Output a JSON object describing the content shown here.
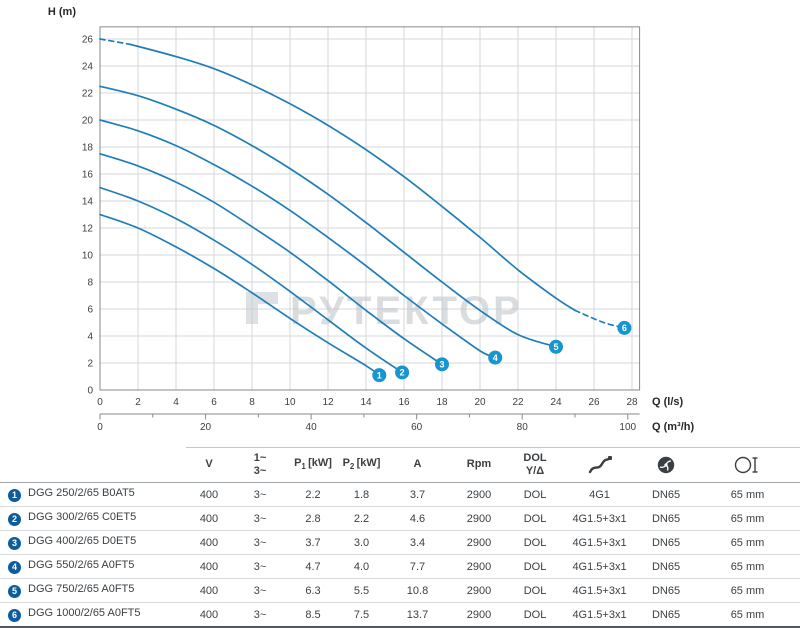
{
  "chart_data": {
    "type": "line",
    "title": "",
    "ylabel": "H (m)",
    "xlabel_primary": "Q (l/s)",
    "xlabel_secondary": "Q (m³/h)",
    "watermark": "РУТЕКТОР",
    "xlim": [
      0,
      28.4
    ],
    "ylim": [
      0,
      26.9
    ],
    "grid": true,
    "legend": "numbered markers 1-6 matching table rows",
    "y_ticks": [
      0,
      2,
      4,
      6,
      8,
      10,
      12,
      14,
      16,
      18,
      20,
      22,
      24,
      26
    ],
    "x_ticks_ls": [
      0,
      2,
      4,
      6,
      8,
      10,
      12,
      14,
      16,
      18,
      20,
      22,
      24,
      26,
      28
    ],
    "x_ticks_m3h": [
      0,
      20,
      40,
      60,
      80,
      100
    ],
    "m3h_per_ls": 3.6,
    "curve_color": "#1f7db8",
    "marker_color": "#1795cd",
    "series": [
      {
        "id": "1",
        "model": "DGG 250/2/65 B0AT5",
        "marker": [
          14.7,
          1.1
        ],
        "segments": [
          {
            "dashed": false,
            "pts": [
              [
                0,
                13
              ],
              [
                2,
                12
              ],
              [
                4,
                10.6
              ],
              [
                6,
                9
              ],
              [
                8,
                7.2
              ],
              [
                10,
                5.3
              ],
              [
                12,
                3.5
              ],
              [
                14,
                1.8
              ],
              [
                14.7,
                1.1
              ]
            ]
          }
        ]
      },
      {
        "id": "2",
        "model": "DGG 300/2/65 C0ET5",
        "marker": [
          15.9,
          1.3
        ],
        "segments": [
          {
            "dashed": false,
            "pts": [
              [
                0,
                15
              ],
              [
                2,
                14
              ],
              [
                4,
                12.7
              ],
              [
                6,
                11.1
              ],
              [
                8,
                9.3
              ],
              [
                10,
                7.3
              ],
              [
                12,
                5.2
              ],
              [
                14,
                3.1
              ],
              [
                15.9,
                1.3
              ]
            ]
          }
        ]
      },
      {
        "id": "3",
        "model": "DGG 400/2/65 D0ET5",
        "marker": [
          18,
          1.9
        ],
        "segments": [
          {
            "dashed": false,
            "pts": [
              [
                0,
                17.5
              ],
              [
                2,
                16.6
              ],
              [
                4,
                15.4
              ],
              [
                6,
                13.9
              ],
              [
                8,
                12.1
              ],
              [
                10,
                10.2
              ],
              [
                12,
                8.1
              ],
              [
                14,
                5.9
              ],
              [
                16,
                3.8
              ],
              [
                18,
                1.9
              ]
            ]
          }
        ]
      },
      {
        "id": "4",
        "model": "DGG 550/2/65 A0FT5",
        "marker": [
          20.8,
          2.4
        ],
        "segments": [
          {
            "dashed": false,
            "pts": [
              [
                0,
                20
              ],
              [
                2,
                19.2
              ],
              [
                4,
                18.1
              ],
              [
                6,
                16.7
              ],
              [
                8,
                15.1
              ],
              [
                10,
                13.3
              ],
              [
                12,
                11.3
              ],
              [
                14,
                9.2
              ],
              [
                16,
                7
              ],
              [
                18,
                4.9
              ],
              [
                20,
                2.9
              ],
              [
                20.8,
                2.4
              ]
            ]
          }
        ]
      },
      {
        "id": "5",
        "model": "DGG 750/2/65 A0FT5",
        "marker": [
          24,
          3.2
        ],
        "segments": [
          {
            "dashed": false,
            "pts": [
              [
                0,
                22.5
              ],
              [
                2,
                21.8
              ],
              [
                4,
                20.8
              ],
              [
                6,
                19.6
              ],
              [
                8,
                18.1
              ],
              [
                10,
                16.4
              ],
              [
                12,
                14.5
              ],
              [
                14,
                12.4
              ],
              [
                16,
                10.2
              ],
              [
                18,
                8
              ],
              [
                20,
                5.9
              ],
              [
                22,
                4.1
              ],
              [
                24,
                3.2
              ]
            ]
          }
        ]
      },
      {
        "id": "6",
        "model": "DGG 1000/2/65 A0FT5",
        "marker": [
          27.6,
          4.6
        ],
        "segments": [
          {
            "dashed": true,
            "pts": [
              [
                0,
                26
              ],
              [
                1.6,
                25.6
              ]
            ]
          },
          {
            "dashed": false,
            "pts": [
              [
                1.6,
                25.6
              ],
              [
                4,
                24.7
              ],
              [
                6,
                23.8
              ],
              [
                8,
                22.6
              ],
              [
                10,
                21.2
              ],
              [
                12,
                19.6
              ],
              [
                14,
                17.8
              ],
              [
                16,
                15.8
              ],
              [
                18,
                13.6
              ],
              [
                20,
                11.3
              ],
              [
                22,
                8.9
              ],
              [
                24,
                6.8
              ],
              [
                25,
                5.9
              ]
            ]
          },
          {
            "dashed": true,
            "pts": [
              [
                25,
                5.9
              ],
              [
                26.5,
                5
              ],
              [
                27.6,
                4.6
              ]
            ]
          }
        ]
      }
    ]
  },
  "table": {
    "headers": {
      "v": "V",
      "phase_top": "1~",
      "phase_bottom": "3~",
      "p1": "P",
      "p1_sub": "1",
      "p1_unit": "[kW]",
      "p2": "P",
      "p2_sub": "2",
      "p2_unit": "[kW]",
      "a": "A",
      "rpm": "Rpm",
      "dol_top": "DOL",
      "dol_bottom": "Y/Δ",
      "cable_icon": "cable-icon",
      "impeller_icon": "impeller-icon",
      "passage_icon": "free-passage-icon"
    },
    "rows": [
      {
        "num": "1",
        "model": "DGG 250/2/65 B0AT5",
        "v": "400",
        "phase": "3~",
        "p1": "2.2",
        "p2": "1.8",
        "a": "3.7",
        "rpm": "2900",
        "start": "DOL",
        "cable": "4G1",
        "dn": "DN65",
        "passage": "65 mm"
      },
      {
        "num": "2",
        "model": "DGG 300/2/65 C0ET5",
        "v": "400",
        "phase": "3~",
        "p1": "2.8",
        "p2": "2.2",
        "a": "4.6",
        "rpm": "2900",
        "start": "DOL",
        "cable": "4G1.5+3x1",
        "dn": "DN65",
        "passage": "65 mm"
      },
      {
        "num": "3",
        "model": "DGG 400/2/65 D0ET5",
        "v": "400",
        "phase": "3~",
        "p1": "3.7",
        "p2": "3.0",
        "a": "3.4",
        "rpm": "2900",
        "start": "DOL",
        "cable": "4G1.5+3x1",
        "dn": "DN65",
        "passage": "65 mm"
      },
      {
        "num": "4",
        "model": "DGG 550/2/65 A0FT5",
        "v": "400",
        "phase": "3~",
        "p1": "4.7",
        "p2": "4.0",
        "a": "7.7",
        "rpm": "2900",
        "start": "DOL",
        "cable": "4G1.5+3x1",
        "dn": "DN65",
        "passage": "65 mm"
      },
      {
        "num": "5",
        "model": "DGG 750/2/65 A0FT5",
        "v": "400",
        "phase": "3~",
        "p1": "6.3",
        "p2": "5.5",
        "a": "10.8",
        "rpm": "2900",
        "start": "DOL",
        "cable": "4G1.5+3x1",
        "dn": "DN65",
        "passage": "65 mm"
      },
      {
        "num": "6",
        "model": "DGG 1000/2/65 A0FT5",
        "v": "400",
        "phase": "3~",
        "p1": "8.5",
        "p2": "7.5",
        "a": "13.7",
        "rpm": "2900",
        "start": "DOL",
        "cable": "4G1.5+3x1",
        "dn": "DN65",
        "passage": "65 mm"
      }
    ]
  }
}
